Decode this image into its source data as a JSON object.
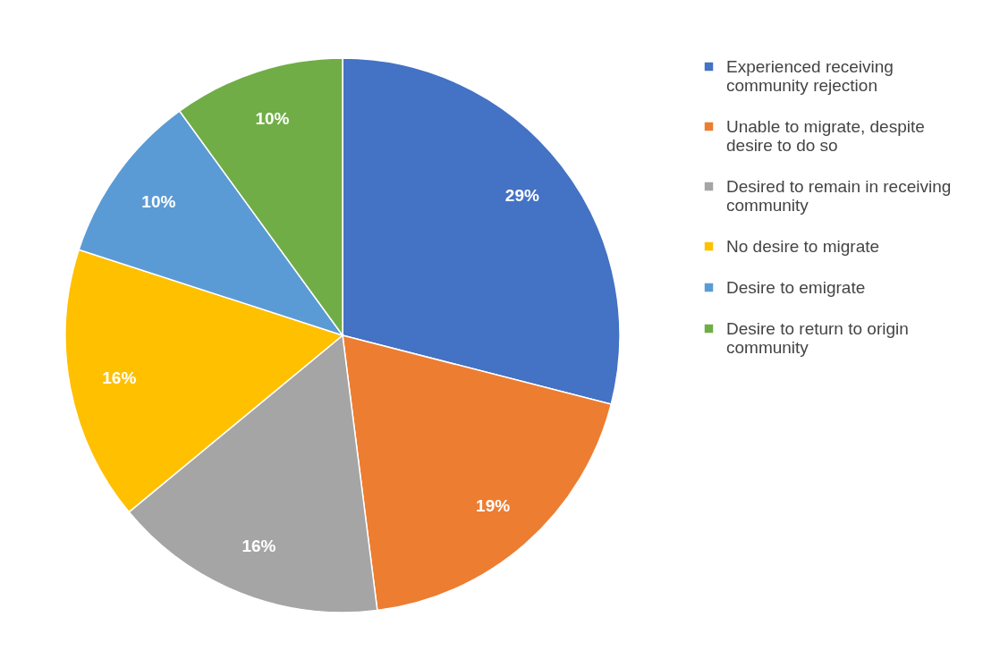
{
  "chart_data": {
    "type": "pie",
    "categories": [
      "Experienced receiving community rejection",
      "Unable to migrate, despite desire to do so",
      "Desired to remain in receiving community",
      "No desire to migrate",
      "Desire to emigrate",
      "Desire to return to origin community"
    ],
    "values": [
      29,
      19,
      16,
      16,
      10,
      10
    ],
    "value_labels": [
      "29%",
      "19%",
      "16%",
      "16%",
      "10%",
      "10%"
    ],
    "colors": [
      "#4472c4",
      "#ed7d31",
      "#a5a5a5",
      "#ffc000",
      "#5b9bd5",
      "#70ad47"
    ],
    "legend": "right"
  }
}
